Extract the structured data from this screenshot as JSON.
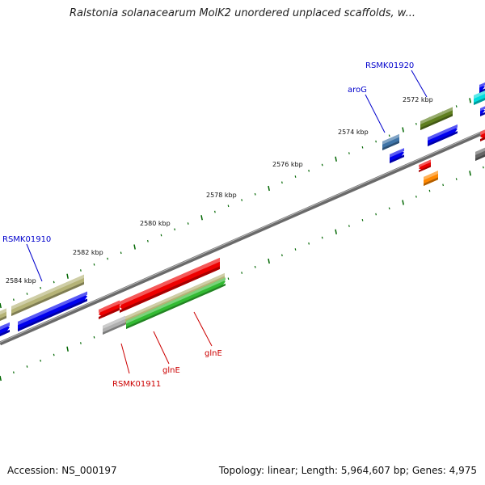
{
  "title": "Ralstonia solanacearum MolK2 unordered unplaced scaffolds, w...",
  "footer": {
    "accession": "Accession: NS_000197",
    "summary": "Topology: linear; Length: 5,964,607 bp; Genes: 4,975"
  },
  "ticks": [
    {
      "label": "2584 kbp"
    },
    {
      "label": "2582 kbp"
    },
    {
      "label": "2580 kbp"
    },
    {
      "label": "2578 kbp"
    },
    {
      "label": "2576 kbp"
    },
    {
      "label": "2574 kbp"
    },
    {
      "label": "2572 kbp"
    }
  ],
  "gene_labels": [
    {
      "text": "RSMK01910",
      "color": "#0000cc"
    },
    {
      "text": "RSMK01920",
      "color": "#0000cc"
    },
    {
      "text": "aroG",
      "color": "#0000cc"
    },
    {
      "text": "RSMK01911",
      "color": "#cc0000"
    },
    {
      "text": "glnE",
      "color": "#cc0000"
    },
    {
      "text": "glnE",
      "color": "#cc0000"
    }
  ],
  "colors": {
    "backbone": "#808080",
    "tick": "#006600",
    "olive": "#b5b377",
    "blue": "#0000ee",
    "red": "#ee0000",
    "green": "#33bb33",
    "gray": "#b0b0b0",
    "darkgreen": "#5f7f1f",
    "steelblue": "#3f74a8",
    "cyan": "#00dddd",
    "orange": "#ff8800",
    "darkgray": "#666666"
  }
}
